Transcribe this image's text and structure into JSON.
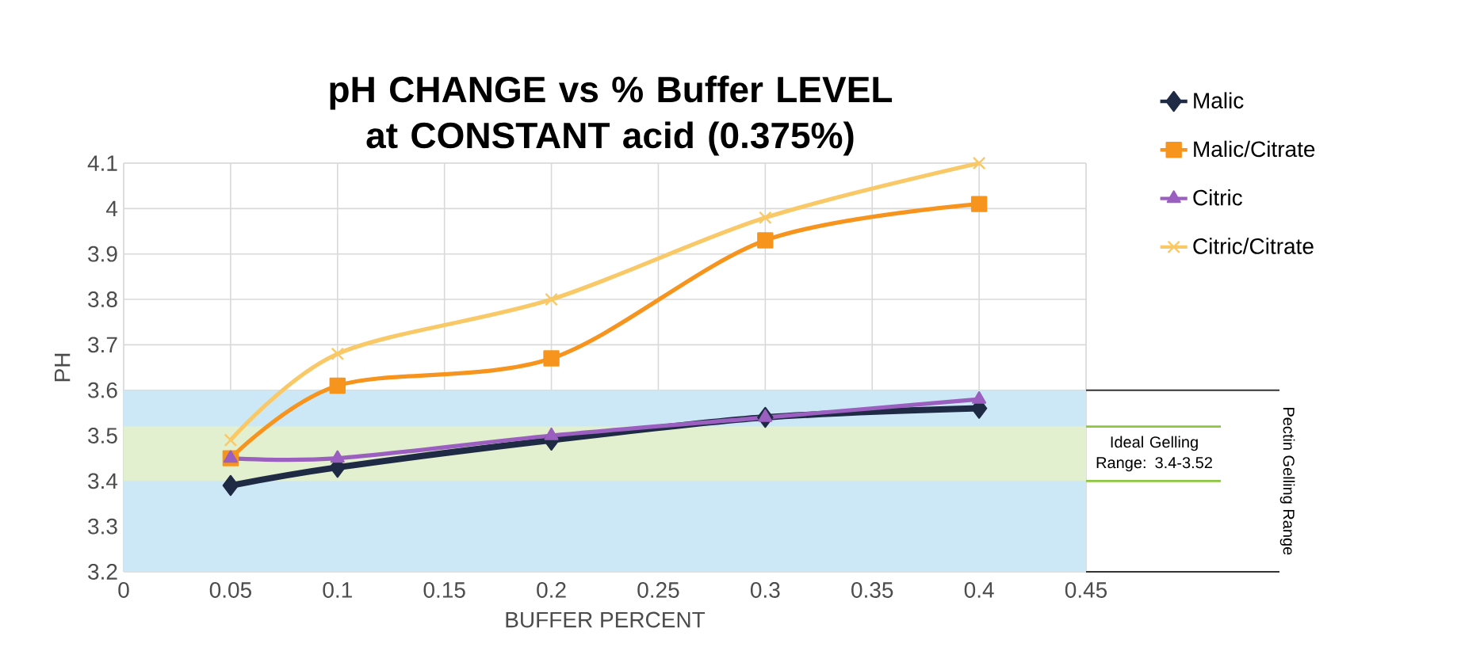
{
  "chart_data": {
    "type": "line",
    "title": "pH CHANGE vs % Buffer LEVEL at CONSTANT acid (0.375%)",
    "xlabel": "BUFFER PERCENT",
    "ylabel": "PH",
    "x": [
      0.05,
      0.1,
      0.2,
      0.3,
      0.4
    ],
    "series": [
      {
        "name": "Malic",
        "color": "#1f2a44",
        "marker": "diamond",
        "values": [
          3.39,
          3.43,
          3.49,
          3.54,
          3.56
        ]
      },
      {
        "name": "Malic/Citrate",
        "color": "#f7941d",
        "marker": "square",
        "values": [
          3.45,
          3.61,
          3.67,
          3.93,
          4.01
        ]
      },
      {
        "name": "Citric",
        "color": "#9b5fc0",
        "marker": "triangle",
        "values": [
          3.45,
          3.45,
          3.5,
          3.54,
          3.58
        ]
      },
      {
        "name": "Citric/Citrate",
        "color": "#f9c867",
        "marker": "cross",
        "values": [
          3.49,
          3.68,
          3.8,
          3.98,
          4.1
        ]
      }
    ],
    "xlim": [
      0,
      0.45
    ],
    "xticks": [
      0,
      0.05,
      0.1,
      0.15,
      0.2,
      0.25,
      0.3,
      0.35,
      0.4,
      0.45
    ],
    "ylim": [
      3.2,
      4.1
    ],
    "yticks": [
      3.2,
      3.3,
      3.4,
      3.5,
      3.6,
      3.7,
      3.8,
      3.9,
      4,
      4.1
    ],
    "bands": [
      {
        "axis": "y",
        "from": 3.2,
        "to": 3.6,
        "label": "Pectin Gelling Range",
        "color": "#cce8f7"
      },
      {
        "axis": "y",
        "from": 3.4,
        "to": 3.52,
        "label": "Ideal Gelling Range: 3.4-3.52",
        "color": "#e2f0d0"
      }
    ],
    "grid": true,
    "legend": "right",
    "line_style": "solid"
  }
}
